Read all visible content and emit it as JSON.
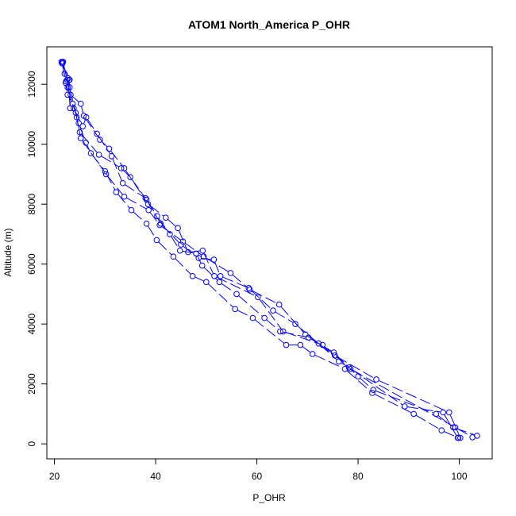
{
  "chart_data": {
    "type": "scatter",
    "title": "ATOM1 North_America P_OHR",
    "xlabel": "P_OHR",
    "ylabel": "Altitude (m)",
    "xlim": [
      18.5,
      106.5
    ],
    "ylim": [
      -500,
      13250
    ],
    "x_ticks": [
      20,
      40,
      60,
      80,
      100
    ],
    "y_ticks": [
      0,
      2000,
      4000,
      6000,
      8000,
      10000,
      12000
    ],
    "grid": false,
    "legend": "none",
    "line_style": "dashed connecting lines with open circle markers",
    "colors": {
      "series": "#0000ff",
      "axis": "#000000",
      "background": "#ffffff"
    },
    "series": [
      {
        "points": [
          [
            21.6,
            12750
          ],
          [
            21.6,
            12700
          ],
          [
            22.2,
            12050
          ],
          [
            22.6,
            11650
          ],
          [
            23.6,
            11350
          ],
          [
            24.8,
            10700
          ],
          [
            26.2,
            10050
          ],
          [
            27.2,
            9700
          ],
          [
            30.0,
            9100
          ],
          [
            32.2,
            8400
          ],
          [
            35.2,
            7800
          ],
          [
            38.2,
            7350
          ],
          [
            40.2,
            6800
          ],
          [
            43.5,
            6250
          ],
          [
            47.3,
            5600
          ],
          [
            50.0,
            5400
          ],
          [
            55.7,
            4500
          ],
          [
            59.2,
            4200
          ],
          [
            65.8,
            3300
          ],
          [
            68.6,
            3300
          ],
          [
            71.0,
            3000
          ],
          [
            77.4,
            2500
          ],
          [
            82.8,
            1700
          ],
          [
            91.0,
            1000
          ],
          [
            96.5,
            450
          ],
          [
            99.8,
            200
          ]
        ]
      },
      {
        "points": [
          [
            21.7,
            12750
          ],
          [
            22.5,
            12150
          ],
          [
            23.0,
            11900
          ],
          [
            24.4,
            10900
          ],
          [
            25.0,
            10400
          ],
          [
            28.8,
            9650
          ],
          [
            33.2,
            9200
          ],
          [
            35.0,
            8900
          ],
          [
            38.2,
            8150
          ],
          [
            40.3,
            7600
          ],
          [
            42.8,
            7000
          ],
          [
            44.8,
            6450
          ],
          [
            48.0,
            6350
          ],
          [
            49.2,
            5950
          ],
          [
            52.6,
            5400
          ],
          [
            56.0,
            5000
          ],
          [
            61.5,
            4200
          ],
          [
            64.6,
            3750
          ],
          [
            70.2,
            3550
          ],
          [
            75.2,
            3050
          ],
          [
            80.0,
            2250
          ],
          [
            83.0,
            1800
          ],
          [
            95.4,
            1000
          ],
          [
            98.8,
            550
          ],
          [
            103.5,
            270
          ]
        ]
      },
      {
        "points": [
          [
            21.4,
            12750
          ],
          [
            22.3,
            12100
          ],
          [
            22.6,
            11900
          ],
          [
            23.8,
            11200
          ],
          [
            25.6,
            10600
          ],
          [
            26.3,
            10900
          ],
          [
            28.4,
            10350
          ],
          [
            31.3,
            9600
          ],
          [
            33.5,
            8700
          ],
          [
            38.0,
            8200
          ],
          [
            41.0,
            7350
          ],
          [
            45.0,
            6650
          ],
          [
            48.5,
            6200
          ],
          [
            51.5,
            6150
          ],
          [
            52.8,
            5600
          ],
          [
            58.4,
            5200
          ],
          [
            63.2,
            4450
          ],
          [
            67.6,
            4000
          ],
          [
            72.2,
            3350
          ],
          [
            76.2,
            2750
          ],
          [
            78.2,
            2550
          ],
          [
            89.2,
            1250
          ],
          [
            96.8,
            1050
          ],
          [
            99.7,
            200
          ]
        ]
      },
      {
        "points": [
          [
            21.5,
            12700
          ],
          [
            23.0,
            12150
          ],
          [
            22.9,
            12150
          ],
          [
            23.2,
            11650
          ],
          [
            25.2,
            11350
          ],
          [
            25.8,
            10950
          ],
          [
            29.0,
            10150
          ],
          [
            30.8,
            9850
          ],
          [
            33.8,
            9200
          ],
          [
            38.5,
            8000
          ],
          [
            42.0,
            7550
          ],
          [
            44.4,
            7200
          ],
          [
            46.4,
            6400
          ],
          [
            49.3,
            6450
          ],
          [
            51.6,
            5600
          ],
          [
            60.2,
            4900
          ],
          [
            65.2,
            3750
          ],
          [
            73.0,
            3300
          ],
          [
            78.5,
            2500
          ],
          [
            99.2,
            550
          ],
          [
            102.6,
            220
          ]
        ]
      },
      {
        "points": [
          [
            22.0,
            12350
          ],
          [
            22.7,
            12200
          ],
          [
            23.1,
            11200
          ],
          [
            24.2,
            11050
          ],
          [
            25.2,
            10200
          ],
          [
            30.2,
            9000
          ],
          [
            33.8,
            8250
          ],
          [
            38.6,
            7800
          ],
          [
            40.8,
            7300
          ],
          [
            45.4,
            6750
          ],
          [
            49.5,
            6250
          ],
          [
            54.8,
            5700
          ],
          [
            58.6,
            5150
          ],
          [
            64.4,
            4650
          ],
          [
            69.6,
            3650
          ],
          [
            75.4,
            2950
          ],
          [
            83.6,
            2150
          ],
          [
            98.0,
            1050
          ],
          [
            100.2,
            200
          ]
        ]
      }
    ]
  }
}
